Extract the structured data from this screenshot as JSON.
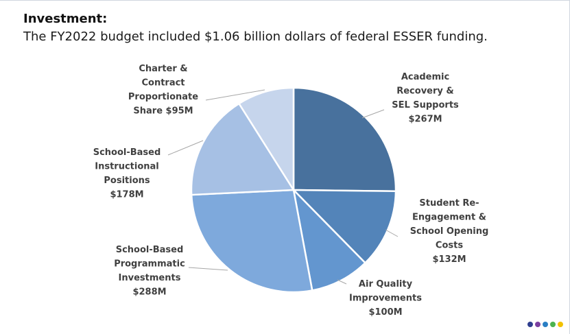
{
  "header": {
    "title": "Investment:",
    "subtitle": "The FY2022 budget included $1.06 billion dollars of federal ESSER funding."
  },
  "chart_data": {
    "type": "pie",
    "title": "",
    "slices": [
      {
        "label_lines": [
          "Academic",
          "Recovery &",
          "SEL Supports",
          "$267M"
        ],
        "value": 267,
        "color": "#48719d"
      },
      {
        "label_lines": [
          "Student Re-",
          "Engagement &",
          "School Opening",
          "Costs",
          "$132M"
        ],
        "value": 132,
        "color": "#5384b9"
      },
      {
        "label_lines": [
          "Air Quality",
          "Improvements",
          "$100M"
        ],
        "value": 100,
        "color": "#6396cf"
      },
      {
        "label_lines": [
          "School-Based",
          "Programmatic",
          "Investments",
          "$288M"
        ],
        "value": 288,
        "color": "#7ea9dc"
      },
      {
        "label_lines": [
          "School-Based",
          "Instructional",
          "Positions",
          "$178M"
        ],
        "value": 178,
        "color": "#a6c0e4"
      },
      {
        "label_lines": [
          "Charter &",
          "Contract",
          "Proportionate",
          "Share $95M"
        ],
        "value": 95,
        "color": "#c6d5ec"
      }
    ],
    "legend": "none"
  },
  "branding": {
    "dot_colors": [
      "#2f3e8f",
      "#7b3fa0",
      "#2a7fc4",
      "#4bb34f",
      "#f2c200"
    ]
  }
}
